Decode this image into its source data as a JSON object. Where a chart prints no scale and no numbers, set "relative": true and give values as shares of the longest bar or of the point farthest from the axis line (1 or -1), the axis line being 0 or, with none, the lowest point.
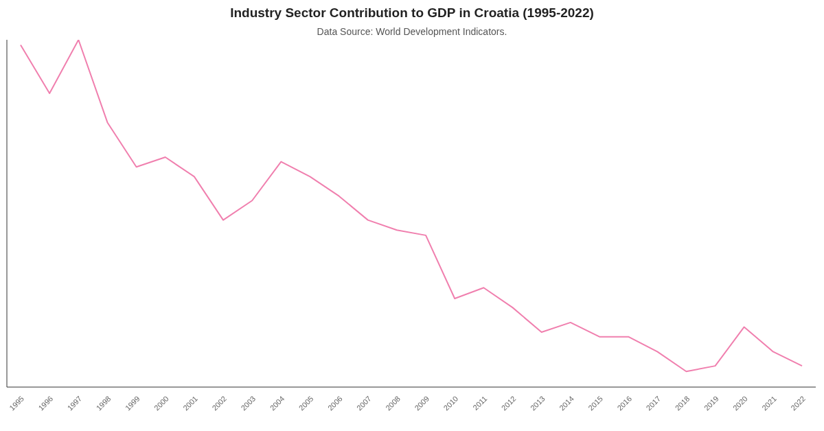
{
  "chart_data": {
    "type": "line",
    "title": "Industry Sector Contribution to GDP in Croatia (1995-2022)",
    "subtitle": "Data Source: World Development Indicators.",
    "categories": [
      "1995",
      "1996",
      "1997",
      "1998",
      "1999",
      "2000",
      "2001",
      "2002",
      "2003",
      "2004",
      "2005",
      "2006",
      "2007",
      "2008",
      "2009",
      "2010",
      "2011",
      "2012",
      "2013",
      "2014",
      "2015",
      "2016",
      "2017",
      "2018",
      "2019",
      "2020",
      "2021",
      "2022"
    ],
    "relative": true,
    "series": [
      {
        "color": "#f07fae",
        "values": [
          0.985,
          0.846,
          1,
          0.762,
          0.634,
          0.662,
          0.606,
          0.481,
          0.537,
          0.649,
          0.606,
          0.55,
          0.481,
          0.452,
          0.437,
          0.255,
          0.286,
          0.229,
          0.158,
          0.186,
          0.145,
          0.145,
          0.102,
          0.045,
          0.061,
          0.173,
          0.102,
          0.061
        ]
      }
    ],
    "grid": false,
    "legend": false,
    "marker": "none",
    "line_style": "solid"
  }
}
